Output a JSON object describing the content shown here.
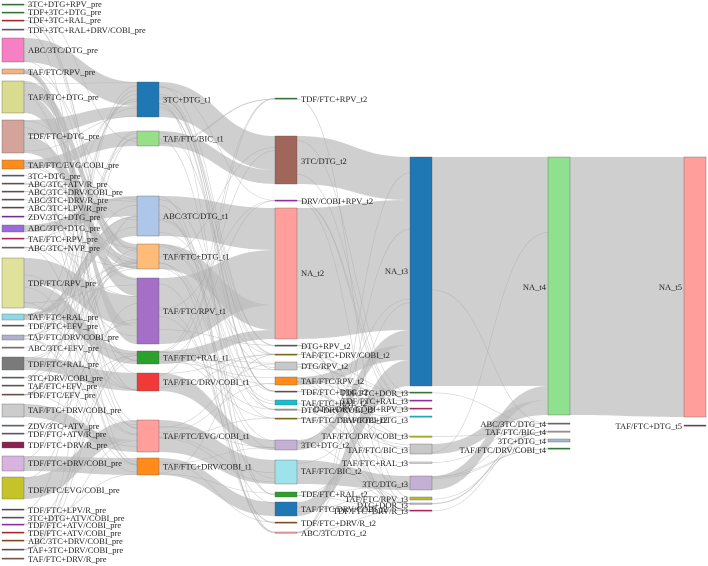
{
  "diagram": {
    "type": "sankey",
    "columns": [
      {
        "id": "pre",
        "nodes": [
          {
            "label": "3TC+DTG+RPV_pre",
            "color": "#2e7d32"
          },
          {
            "label": "TDF+3TC+DTG_pre",
            "color": "#2e7d32"
          },
          {
            "label": "TDF+3TC+RAL_pre",
            "color": "#b71c1c"
          },
          {
            "label": "TDF+3TC+RAL+DRV/COBI_pre",
            "color": "#9c27b0"
          },
          {
            "label": "ABC/3TC/DTG_pre",
            "color": "#f77fc3"
          },
          {
            "label": "TAF/FTC/RPV_pre",
            "color": "#f5b27a"
          },
          {
            "label": "TAF/FTC+DTG_pre",
            "color": "#d9db8f"
          },
          {
            "label": "TDF/FTC+DTG_pre",
            "color": "#d4a39a"
          },
          {
            "label": "TAF/FTC/EVG/COBI_pre",
            "color": "#ff8c1a"
          },
          {
            "label": "3TC+DTG_pre",
            "color": "#1565c0"
          },
          {
            "label": "ABC/3TC+ATV/R_pre",
            "color": "#8b4513"
          },
          {
            "label": "ABC/3TC+DRV/COBI_pre",
            "color": "#c2185b"
          },
          {
            "label": "ABC/3TC+DRV/R_pre",
            "color": "#8b4513"
          },
          {
            "label": "ABC/3TC+LPV/R_pre",
            "color": "#ad1457"
          },
          {
            "label": "ZDV/3TC+DTG_pre",
            "color": "#7b1fa2"
          },
          {
            "label": "ABC/3TC+DTG_pre",
            "color": "#9c6ade"
          },
          {
            "label": "TAF/FTC+RPV_pre",
            "color": "#c2185b"
          },
          {
            "label": "ABC/3TC+NVP_pre",
            "color": "#e91e63"
          },
          {
            "label": "TDF/FTC/RPV_pre",
            "color": "#e0e19a"
          },
          {
            "label": "TAF/FTC+RAL_pre",
            "color": "#8fd9e6"
          },
          {
            "label": "TDF/FTC+EFV_pre",
            "color": "#8b4513"
          },
          {
            "label": "TAF/FTC/DRV/COBI_pre",
            "color": "#b0b0d0"
          },
          {
            "label": "ABC/3TC+EFV_pre",
            "color": "#ec407a"
          },
          {
            "label": "TDF/FTC+RAL_pre",
            "color": "#7a7a7a"
          },
          {
            "label": "3TC+DRV/COBI_pre",
            "color": "#2e7d32"
          },
          {
            "label": "TAF/FTC+EFV_pre",
            "color": "#8b4513"
          },
          {
            "label": "TDF/FTC/EFV_pre",
            "color": "#6d4c41"
          },
          {
            "label": "TAF/FTC+DRV/COBI_pre",
            "color": "#cccccc"
          },
          {
            "label": "ZDV/3TC+ATV_pre",
            "color": "#1976d2"
          },
          {
            "label": "TDF/FTC+ATV/R_pre",
            "color": "#9c27b0"
          },
          {
            "label": "TDF/FTC+DRV/R_pre",
            "color": "#8b2252"
          },
          {
            "label": "TDF/FTC+DRV/COBI_pre",
            "color": "#d9b3e0"
          },
          {
            "label": "TDF/FTC/EVG/COBI_pre",
            "color": "#c4c42a"
          },
          {
            "label": "TDF/FTC+LPV/R_pre",
            "color": "#7b1fa2"
          },
          {
            "label": "3TC+DTG+ATV/COBI_pre",
            "color": "#8b4513"
          },
          {
            "label": "TDF/FTC+ATV/COBI_pre",
            "color": "#9c27b0"
          },
          {
            "label": "TDF/FTC+ATV/COBI_pre",
            "color": "#b71c1c"
          },
          {
            "label": "ABC/3TC+DRV/COBI_pre",
            "color": "#8b4513"
          },
          {
            "label": "TAF+3TC+DRV/COBI_pre",
            "color": "#c2185b"
          },
          {
            "label": "TAF/FTC+DRV/R_pre",
            "color": "#795548"
          }
        ]
      },
      {
        "id": "t1",
        "nodes": [
          {
            "label": "3TC+DTG_t1",
            "color": "#1f77b4"
          },
          {
            "label": "TAF/FTC/BIC_t1",
            "color": "#98df8a"
          },
          {
            "label": "ABC/3TC/DTG_t1",
            "color": "#aec7e8"
          },
          {
            "label": "TAF/FTC+DTG_t1",
            "color": "#ffbb78"
          },
          {
            "label": "TAF/FTC/RPV_t1",
            "color": "#a56fc8"
          },
          {
            "label": "TAF/FTC+RAL_t1",
            "color": "#2ca02c"
          },
          {
            "label": "TAF/FTC/DRV/COBI_t1",
            "color": "#f03a3a"
          },
          {
            "label": "TAF/FTC/EVG/COBI_t1",
            "color": "#ff9e9a"
          },
          {
            "label": "TAF/FTC+DRV/COBI_t1",
            "color": "#ff8c1a"
          }
        ]
      },
      {
        "id": "t2",
        "nodes": [
          {
            "label": "TDF/FTC+RPV_t2",
            "color": "#2e7d32"
          },
          {
            "label": "3TC/DTG_t2",
            "color": "#a0665a"
          },
          {
            "label": "DRV/COBI+RPV_t2",
            "color": "#9c27b0"
          },
          {
            "label": "NA_t2",
            "color": "#ff9e9a"
          },
          {
            "label": "DTG+RPV_t2",
            "color": "#555555"
          },
          {
            "label": "TAF/FTC+DRV/COBI_t2",
            "color": "#8b6914"
          },
          {
            "label": "DTG/RPV_t2",
            "color": "#c8c8c8"
          },
          {
            "label": "TAF/FTC/RPV_t2",
            "color": "#ff8c1a"
          },
          {
            "label": "TDF/FTC+DTG_t2",
            "color": "#c2185b"
          },
          {
            "label": "TAF/FTC+RAL_t2",
            "color": "#17becf"
          },
          {
            "label": "DTG+DRV/COBI_t2",
            "color": "#9c9c9c"
          },
          {
            "label": "TAF/FTC/DRV/COBI_t2",
            "color": "#8b6914"
          },
          {
            "label": "3TC+DTG_t2",
            "color": "#c5b0d5"
          },
          {
            "label": "TAF/FTC/BIC_t2",
            "color": "#9ee3ec"
          },
          {
            "label": "TDF/FTC+RAL_t2",
            "color": "#2ca02c"
          },
          {
            "label": "TAF/FTC/DRV/COBI_t2",
            "color": "#1f77b4"
          },
          {
            "label": "TDF/FTC+DRV/R_t2",
            "color": "#8b4513"
          },
          {
            "label": "ABC/3TC/DTG_t2",
            "color": "#ff9e9a"
          }
        ]
      },
      {
        "id": "t3",
        "nodes": [
          {
            "label": "NA_t3",
            "color": "#1f77b4"
          },
          {
            "label": "TDF/FTC+DOR_t3",
            "color": "#2e7d32"
          },
          {
            "label": "TDF/FTC+RAL_t3",
            "color": "#9c27b0"
          },
          {
            "label": "DTG+DRV/COBI+RPV_t3",
            "color": "#c2185b"
          },
          {
            "label": "TAF/FTC+DTG_t3",
            "color": "#17becf"
          },
          {
            "label": "TAF/FTC/DRV/COBI_t3",
            "color": "#bcbd22"
          },
          {
            "label": "TAF/FTC/BIC_t3",
            "color": "#c8c8c8"
          },
          {
            "label": "TAF/FTC+RAL_t3",
            "color": "#e0e0e0"
          },
          {
            "label": "3TC/DTG_t3",
            "color": "#c5b0d5"
          },
          {
            "label": "TAF/FTC/RPV_t3",
            "color": "#bcbd22"
          },
          {
            "label": "DTG+DOR_t3",
            "color": "#d9b3e0"
          },
          {
            "label": "TDF/FTC+DRV/R_t3",
            "color": "#c2185b"
          }
        ]
      },
      {
        "id": "t4",
        "nodes": [
          {
            "label": "NA_t4",
            "color": "#8fe08f"
          },
          {
            "label": "ABC/3TC/DTG_t4",
            "color": "#8b6914"
          },
          {
            "label": "TAF/FTC/BIC_t4",
            "color": "#ff7f50"
          },
          {
            "label": "3TC+DTG_t4",
            "color": "#9fb8d8"
          },
          {
            "label": "TAF/FTC/DRV/COBI_t4",
            "color": "#2e7d32"
          }
        ]
      },
      {
        "id": "t5",
        "nodes": [
          {
            "label": "NA_t5",
            "color": "#ff9e9a"
          },
          {
            "label": "TAF/FTC+DTG_t5",
            "color": "#b71c1c"
          }
        ]
      }
    ]
  }
}
